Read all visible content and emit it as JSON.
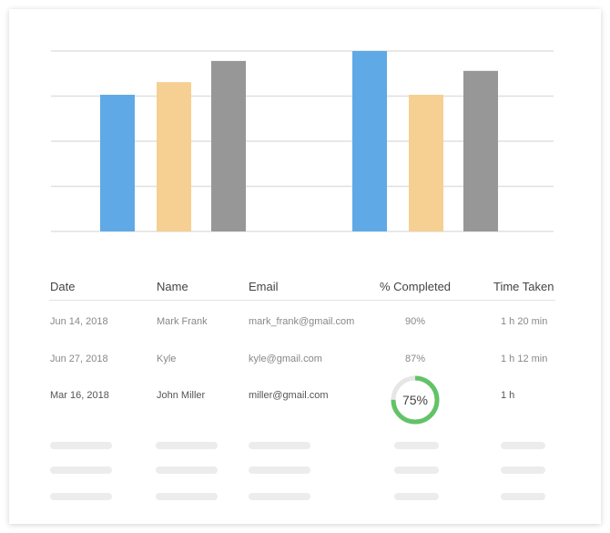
{
  "chart_data": {
    "type": "bar",
    "categories": [
      "",
      ""
    ],
    "series": [
      {
        "values": [
          3.03,
          4.0
        ],
        "color": "#5fa9e6"
      },
      {
        "values": [
          3.31,
          3.03
        ],
        "color": "#f6cf93"
      },
      {
        "values": [
          3.78,
          3.56
        ],
        "color": "#979797"
      }
    ],
    "ylim": [
      0,
      4
    ],
    "grid": true
  },
  "table": {
    "headers": [
      "Date",
      "Name",
      "Email",
      "% Completed",
      "Time Taken"
    ],
    "rows": [
      {
        "date": "Jun 14, 2018",
        "name": "Mark Frank",
        "email": "mark_frank@gmail.com",
        "completed": "90%",
        "time": "1 h 20 min"
      },
      {
        "date": "Jun 27, 2018",
        "name": "Kyle",
        "email": "kyle@gmail.com",
        "completed": "87%",
        "time": "1 h 12 min"
      },
      {
        "date": "Mar 16, 2018",
        "name": "John Miller",
        "email": "miller@gmail.com",
        "completed": "75%",
        "time": "1 h",
        "progress": 0.75
      }
    ]
  },
  "colors": {
    "progress": "#62c366",
    "progress_track": "#e6e6e6"
  }
}
